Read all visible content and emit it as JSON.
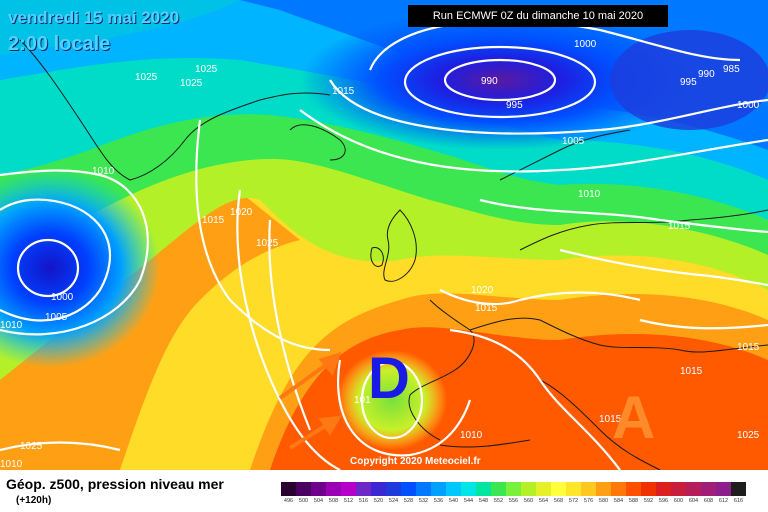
{
  "header": {
    "date": "vendredi 15 mai 2020",
    "time": "2:00 locale",
    "run": "Run ECMWF 0Z du dimanche 10 mai 2020"
  },
  "copyright": "Copyright 2020 Meteociel.fr",
  "legend": {
    "title": "Géop. z500, pression niveau mer",
    "subtitle": "(+120h)",
    "scale_values": [
      "496",
      "500",
      "504",
      "508",
      "512",
      "516",
      "520",
      "524",
      "528",
      "532",
      "536",
      "540",
      "544",
      "548",
      "552",
      "556",
      "560",
      "564",
      "568",
      "572",
      "576",
      "580",
      "584",
      "588",
      "592",
      "596",
      "600",
      "604",
      "608",
      "612",
      "616"
    ],
    "scale_colors": [
      "#2a0030",
      "#4a0060",
      "#6e008c",
      "#9a00b4",
      "#b400c8",
      "#6e28c8",
      "#3c28d2",
      "#1e3cdc",
      "#0050ff",
      "#0078ff",
      "#00a0ff",
      "#00c8ff",
      "#00e6e6",
      "#00e6a0",
      "#3ce650",
      "#78f03c",
      "#b4f028",
      "#e6f028",
      "#ffff3c",
      "#ffe628",
      "#ffc81e",
      "#ffa014",
      "#ff780a",
      "#ff5000",
      "#f03200",
      "#dc1e1e",
      "#c81e3c",
      "#b41e5a",
      "#a01e78",
      "#8c1e8c",
      "#1e1e1e"
    ]
  },
  "map": {
    "low_symbol": "D",
    "high_symbol": "A",
    "isobar_labels": [
      "1025",
      "1025",
      "1025",
      "1015",
      "990",
      "995",
      "1000",
      "990",
      "985",
      "995",
      "1000",
      "1005",
      "1010",
      "1010",
      "1015",
      "1020",
      "1025",
      "1015",
      "1000",
      "1005",
      "1010",
      "1020",
      "1015",
      "1015",
      "1015",
      "1015",
      "1010",
      "1025",
      "1025",
      "1010",
      "101"
    ]
  }
}
